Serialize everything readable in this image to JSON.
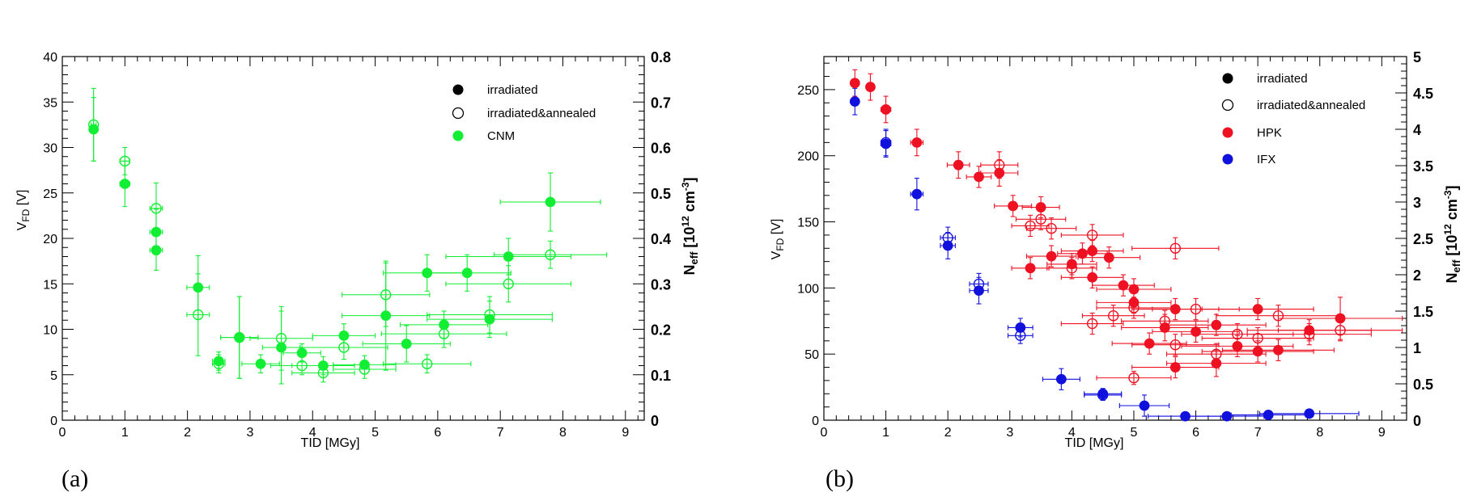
{
  "colors": {
    "cnm": "#11ee33",
    "hpk": "#ee1122",
    "ifx": "#1111dd",
    "black": "#000000"
  },
  "chart_data": [
    {
      "type": "scatter",
      "panel": "(a)",
      "xlabel": "TID [MGy]",
      "ylabel_main": "V",
      "ylabel_sub": "FD",
      "ylabel_unit": " [V]",
      "y2label_main": "N",
      "y2label_sub": "eff",
      "y2label_unit_a": " [10",
      "y2label_sup": "12",
      "y2label_unit_b": " cm",
      "y2label_sup2": "-3",
      "y2label_close": "]",
      "xlim": [
        0,
        9.3
      ],
      "ylim": [
        0,
        40
      ],
      "y2lim": [
        0,
        0.8
      ],
      "xticks": [
        "0",
        "1",
        "2",
        "3",
        "4",
        "5",
        "6",
        "7",
        "8",
        "9"
      ],
      "yticks": [
        "0",
        "5",
        "10",
        "15",
        "20",
        "25",
        "30",
        "35",
        "40"
      ],
      "y2ticks": [
        "0",
        "0.1",
        "0.2",
        "0.3",
        "0.4",
        "0.5",
        "0.6",
        "0.7",
        "0.8"
      ],
      "legend": [
        {
          "label": "irradiated",
          "marker": "filled",
          "color": "#000000"
        },
        {
          "label": "irradiated&annealed",
          "marker": "open",
          "color": "#000000"
        },
        {
          "label": "CNM",
          "marker": "filled",
          "color": "#11ee33"
        }
      ],
      "series": [
        {
          "name": "CNM irradiated",
          "filled": true,
          "color": "#11ee33",
          "points": [
            [
              0.5,
              32,
              0.04,
              3.5
            ],
            [
              1.0,
              26,
              0.08,
              2.5
            ],
            [
              1.5,
              20.7,
              0.1,
              2.5
            ],
            [
              1.5,
              18.7,
              0.1,
              2.2
            ],
            [
              2.17,
              14.6,
              0.18,
              3.5
            ],
            [
              2.5,
              6.5,
              0.1,
              1
            ],
            [
              2.83,
              9.1,
              0.3,
              4.5
            ],
            [
              3.17,
              6.2,
              0.3,
              1
            ],
            [
              3.5,
              8.0,
              0.3,
              4
            ],
            [
              3.83,
              7.4,
              0.3,
              1
            ],
            [
              4.17,
              6.0,
              0.5,
              1
            ],
            [
              4.5,
              9.3,
              0.5,
              1.3
            ],
            [
              4.83,
              6.1,
              0.5,
              1
            ],
            [
              5.17,
              11.5,
              0.7,
              6
            ],
            [
              5.5,
              8.4,
              0.7,
              2
            ],
            [
              5.83,
              16.2,
              0.7,
              2
            ],
            [
              6.1,
              10.5,
              0.7,
              1.5
            ],
            [
              6.47,
              16.2,
              0.7,
              2
            ],
            [
              6.83,
              11.1,
              1.0,
              2
            ],
            [
              7.13,
              18.0,
              1.0,
              2
            ],
            [
              7.8,
              24.0,
              0.8,
              3.2
            ]
          ]
        },
        {
          "name": "CNM irradiated&annealed",
          "filled": false,
          "color": "#11ee33",
          "points": [
            [
              0.5,
              32.5,
              0.04,
              4
            ],
            [
              1.0,
              28.5,
              0.08,
              1.5
            ],
            [
              1.5,
              23.3,
              0.1,
              2.8
            ],
            [
              2.17,
              11.6,
              0.18,
              4.5
            ],
            [
              2.5,
              6.2,
              0.1,
              1
            ],
            [
              2.83,
              9.1,
              0.3,
              4.5
            ],
            [
              3.5,
              9.0,
              0.5,
              3.5
            ],
            [
              3.83,
              6.0,
              0.5,
              1
            ],
            [
              4.17,
              5.2,
              0.5,
              1
            ],
            [
              4.5,
              8.0,
              0.7,
              1.3
            ],
            [
              4.83,
              5.6,
              0.5,
              1
            ],
            [
              5.17,
              13.8,
              0.7,
              3.5
            ],
            [
              5.83,
              6.2,
              0.7,
              1
            ],
            [
              6.1,
              9.5,
              1.0,
              1.5
            ],
            [
              6.83,
              11.6,
              1.0,
              2
            ],
            [
              7.13,
              15.0,
              1.0,
              2
            ],
            [
              7.8,
              18.2,
              0.9,
              1.5
            ]
          ]
        }
      ]
    },
    {
      "type": "scatter",
      "panel": "(b)",
      "xlabel": "TID [MGy]",
      "ylabel_main": "V",
      "ylabel_sub": "FD",
      "ylabel_unit": " [V]",
      "y2label_main": "N",
      "y2label_sub": "eff",
      "y2label_unit_a": " [10",
      "y2label_sup": "12",
      "y2label_unit_b": " cm",
      "y2label_sup2": "-3",
      "y2label_close": "]",
      "xlim": [
        0,
        9.4
      ],
      "ylim": [
        0,
        275
      ],
      "y2lim": [
        0,
        5
      ],
      "xticks": [
        "0",
        "1",
        "2",
        "3",
        "4",
        "5",
        "6",
        "7",
        "8",
        "9"
      ],
      "yticks": [
        "0",
        "50",
        "100",
        "150",
        "200",
        "250"
      ],
      "y2ticks": [
        "0",
        "0.5",
        "1",
        "1.5",
        "2",
        "2.5",
        "3",
        "3.5",
        "4",
        "4.5",
        "5"
      ],
      "legend": [
        {
          "label": "irradiated",
          "marker": "filled",
          "color": "#000000"
        },
        {
          "label": "irradiated&annealed",
          "marker": "open",
          "color": "#000000"
        },
        {
          "label": "HPK",
          "marker": "filled",
          "color": "#ee1122"
        },
        {
          "label": "IFX",
          "marker": "filled",
          "color": "#1111dd"
        }
      ],
      "series": [
        {
          "name": "HPK irradiated",
          "filled": true,
          "color": "#ee1122",
          "points": [
            [
              0.5,
              255,
              0.04,
              10
            ],
            [
              0.75,
              252,
              0.05,
              10
            ],
            [
              1.0,
              235,
              0.08,
              10
            ],
            [
              1.5,
              210,
              0.1,
              10
            ],
            [
              2.17,
              193,
              0.18,
              10
            ],
            [
              2.5,
              184,
              0.2,
              8
            ],
            [
              2.83,
              187,
              0.3,
              10
            ],
            [
              3.05,
              162,
              0.3,
              8
            ],
            [
              3.33,
              115,
              0.3,
              8
            ],
            [
              3.5,
              161,
              0.3,
              8
            ],
            [
              3.67,
              124,
              0.4,
              8
            ],
            [
              4.0,
              118,
              0.4,
              8
            ],
            [
              4.17,
              126,
              0.4,
              8
            ],
            [
              4.33,
              128,
              0.5,
              8
            ],
            [
              4.33,
              108,
              0.5,
              8
            ],
            [
              4.6,
              123,
              0.5,
              8
            ],
            [
              4.83,
              102,
              0.5,
              8
            ],
            [
              5.0,
              99,
              0.6,
              8
            ],
            [
              5.0,
              89,
              0.6,
              8
            ],
            [
              5.25,
              58,
              0.6,
              8
            ],
            [
              5.5,
              70,
              0.7,
              10
            ],
            [
              5.67,
              84,
              0.7,
              8
            ],
            [
              5.67,
              40,
              0.7,
              8
            ],
            [
              6.0,
              67,
              0.7,
              8
            ],
            [
              6.33,
              72,
              0.8,
              8
            ],
            [
              6.33,
              43,
              0.8,
              10
            ],
            [
              6.67,
              56,
              0.9,
              8
            ],
            [
              7.0,
              84,
              0.9,
              8
            ],
            [
              7.0,
              52,
              0.9,
              8
            ],
            [
              7.33,
              53,
              0.9,
              8
            ],
            [
              7.83,
              68,
              1.0,
              8
            ],
            [
              8.33,
              77,
              1.0,
              16
            ]
          ]
        },
        {
          "name": "HPK irradiated&annealed",
          "filled": false,
          "color": "#ee1122",
          "points": [
            [
              2.83,
              193,
              0.3,
              10
            ],
            [
              3.33,
              147,
              0.3,
              8
            ],
            [
              3.5,
              152,
              0.4,
              8
            ],
            [
              3.67,
              145,
              0.4,
              8
            ],
            [
              4.0,
              115,
              0.4,
              8
            ],
            [
              4.33,
              140,
              0.5,
              8
            ],
            [
              4.33,
              73,
              0.5,
              8
            ],
            [
              4.67,
              79,
              0.5,
              8
            ],
            [
              5.0,
              85,
              0.6,
              8
            ],
            [
              5.0,
              32,
              0.6,
              5
            ],
            [
              5.5,
              75,
              0.7,
              8
            ],
            [
              5.67,
              57,
              0.7,
              8
            ],
            [
              5.67,
              130,
              0.7,
              8
            ],
            [
              6.0,
              84,
              0.7,
              8
            ],
            [
              6.33,
              50,
              0.8,
              8
            ],
            [
              6.67,
              65,
              0.9,
              8
            ],
            [
              7.0,
              62,
              0.9,
              8
            ],
            [
              7.33,
              79,
              1.0,
              8
            ],
            [
              7.83,
              65,
              1.0,
              8
            ],
            [
              8.33,
              68,
              1.0,
              8
            ]
          ]
        },
        {
          "name": "IFX irradiated",
          "filled": true,
          "color": "#1111dd",
          "points": [
            [
              0.5,
              241,
              0.04,
              10
            ],
            [
              1.0,
              209,
              0.08,
              10
            ],
            [
              1.5,
              171,
              0.1,
              12
            ],
            [
              2.0,
              132,
              0.12,
              10
            ],
            [
              2.5,
              98,
              0.15,
              10
            ],
            [
              3.17,
              70,
              0.2,
              7
            ],
            [
              3.83,
              31,
              0.3,
              8
            ],
            [
              4.5,
              20,
              0.3,
              4
            ],
            [
              5.17,
              11,
              0.4,
              8
            ],
            [
              5.83,
              3,
              0.6,
              2
            ],
            [
              6.5,
              3,
              0.6,
              2
            ],
            [
              7.17,
              4,
              0.6,
              2
            ],
            [
              7.83,
              5,
              0.8,
              2
            ]
          ]
        },
        {
          "name": "IFX irradiated&annealed",
          "filled": false,
          "color": "#1111dd",
          "points": [
            [
              1.0,
              210,
              0.08,
              10
            ],
            [
              2.0,
              138,
              0.12,
              8
            ],
            [
              2.5,
              103,
              0.15,
              8
            ],
            [
              3.17,
              64,
              0.2,
              6
            ],
            [
              4.5,
              19,
              0.3,
              4
            ]
          ]
        }
      ]
    }
  ]
}
